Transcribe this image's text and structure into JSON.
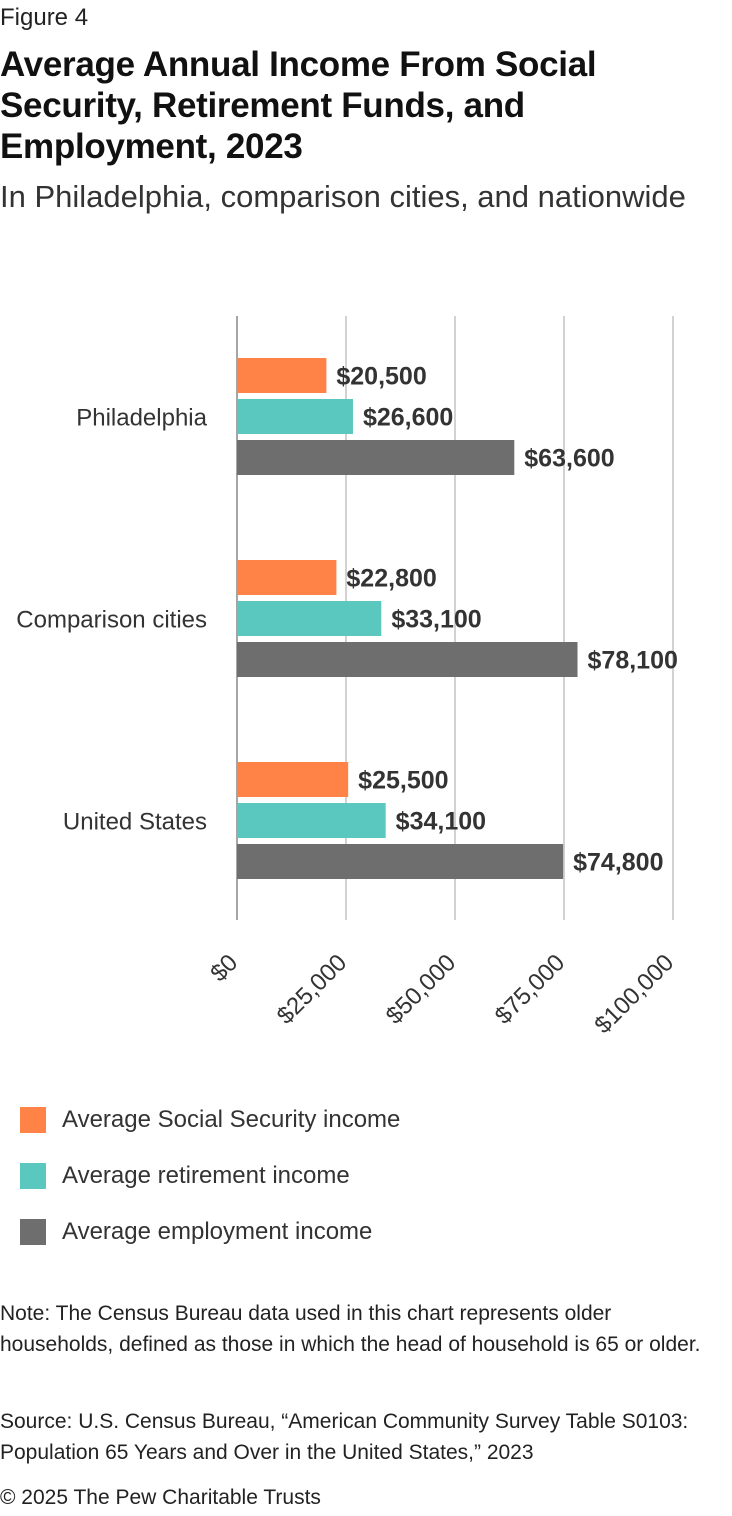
{
  "header": {
    "figure_label": "Figure 4",
    "title": "Average Annual Income From Social Security, Retirement Funds, and Employment, 2023",
    "subtitle": "In Philadelphia, comparison cities, and nationwide"
  },
  "chart_data": {
    "type": "bar",
    "orientation": "horizontal",
    "categories": [
      "Philadelphia",
      "Comparison cities",
      "United States"
    ],
    "series": [
      {
        "name": "Average Social Security income",
        "values": [
          20500,
          22800,
          25500
        ],
        "labels": [
          "$20,500",
          "$22,800",
          "$25,500"
        ],
        "color": "#FF8247"
      },
      {
        "name": "Average retirement income",
        "values": [
          26600,
          33100,
          34100
        ],
        "labels": [
          "$26,600",
          "$33,100",
          "$34,100"
        ],
        "color": "#5AC8BE"
      },
      {
        "name": "Average employment income",
        "values": [
          63600,
          78100,
          74800
        ],
        "labels": [
          "$63,600",
          "$78,100",
          "$74,800"
        ],
        "color": "#6E6E6E"
      }
    ],
    "xlim": [
      0,
      100000
    ],
    "xticks": [
      0,
      25000,
      50000,
      75000,
      100000
    ],
    "xtick_labels": [
      "$0",
      "$25,000",
      "$50,000",
      "$75,000",
      "$100,000"
    ],
    "grid": true,
    "legend_position": "bottom-left"
  },
  "legend": {
    "items": [
      {
        "label": "Average Social Security income",
        "color": "#FF8247"
      },
      {
        "label": "Average retirement income",
        "color": "#5AC8BE"
      },
      {
        "label": "Average employment income",
        "color": "#6E6E6E"
      }
    ]
  },
  "footer": {
    "note": "Note: The Census Bureau data used in this chart represents older households, defined as those in which the head of household is 65 or older.",
    "source": "Source: U.S. Census Bureau, “American Community Survey Table S0103: Population 65 Years and Over in the United States,” 2023",
    "copyright": "© 2025 The Pew Charitable Trusts"
  }
}
